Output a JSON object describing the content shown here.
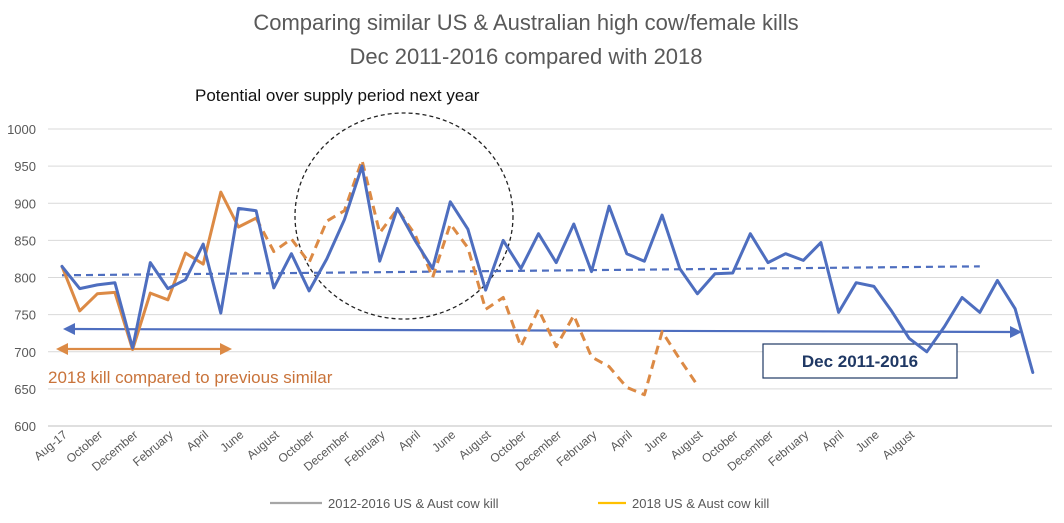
{
  "chart_data": {
    "type": "line",
    "title_lines": [
      "Comparing similar US & Australian high cow/female kills",
      "Dec 2011-2016 compared with 2018"
    ],
    "ylim": [
      600,
      1000
    ],
    "yticks": [
      "600",
      "650",
      "700",
      "750",
      "800",
      "850",
      "900",
      "950",
      "1000"
    ],
    "xlabel": "",
    "ylabel": "",
    "grid": true,
    "x_labels": [
      "Aug-17",
      "October",
      "December",
      "February",
      "April",
      "June",
      "August",
      "October",
      "December",
      "February",
      "April",
      "June",
      "August",
      "October",
      "December",
      "February",
      "April",
      "June",
      "August",
      "October",
      "December",
      "February",
      "April",
      "June",
      "August"
    ],
    "series": [
      {
        "name": "2012-2016 US & Aust cow kill",
        "color": "#4e6ebf",
        "values": [
          815,
          785,
          790,
          793,
          705,
          820,
          785,
          797,
          845,
          752,
          893,
          890,
          786,
          832,
          782,
          825,
          878,
          950,
          822,
          893,
          850,
          812,
          902,
          865,
          783,
          850,
          812,
          859,
          820,
          872,
          808,
          896,
          832,
          822,
          884,
          812,
          778,
          805,
          806,
          859,
          820,
          832,
          823,
          847,
          753,
          793,
          788,
          755,
          718,
          700,
          734,
          773,
          753,
          796,
          758,
          672
        ]
      },
      {
        "name": "2018 US & Aust cow kill",
        "color": "#dc8a45",
        "values": [
          815,
          755,
          778,
          780,
          703,
          779,
          770,
          833,
          818,
          915,
          868,
          880,
          null,
          null,
          null,
          null,
          null,
          null,
          null,
          null,
          null,
          null,
          null,
          null,
          null,
          null,
          null,
          null,
          null,
          null,
          null,
          null,
          null,
          null,
          null,
          null,
          null,
          null,
          null,
          null,
          null,
          null,
          null,
          null,
          null,
          null,
          null,
          null,
          null,
          null,
          null,
          null,
          null,
          null,
          null,
          null
        ]
      },
      {
        "name": "",
        "color": "#dc8a45",
        "dashed": true,
        "values": [
          null,
          null,
          null,
          null,
          null,
          null,
          null,
          null,
          null,
          null,
          null,
          880,
          835,
          852,
          820,
          876,
          890,
          958,
          860,
          892,
          858,
          800,
          872,
          840,
          757,
          773,
          707,
          757,
          707,
          749,
          693,
          680,
          652,
          642,
          727,
          690,
          655,
          null,
          null,
          null,
          null,
          null,
          null,
          null,
          null,
          null,
          null,
          null,
          null,
          null,
          null,
          null,
          null,
          null,
          null,
          null
        ]
      }
    ],
    "trend_line": {
      "color": "#4e6ebf",
      "dashed": true,
      "from": 803,
      "to": 815
    },
    "annotations": {
      "oversupply_label": "Potential over supply period next year",
      "kill_2018_label": "2018  kill compared to previous similar",
      "period_label": "Dec 2011-2016"
    },
    "legend": {
      "position": "bottom",
      "entries": [
        {
          "label": "2012-2016 US & Aust cow kill",
          "color": "#a6a6a6"
        },
        {
          "label": "2018 US & Aust cow kill",
          "color": "#ffc000"
        }
      ]
    },
    "colors": {
      "blue": "#4e6ebf",
      "orange": "#dc8a45",
      "grid": "#d9d9d9",
      "text": "#595959",
      "orange_text": "#c9733a",
      "navy_text": "#1f3864"
    }
  }
}
